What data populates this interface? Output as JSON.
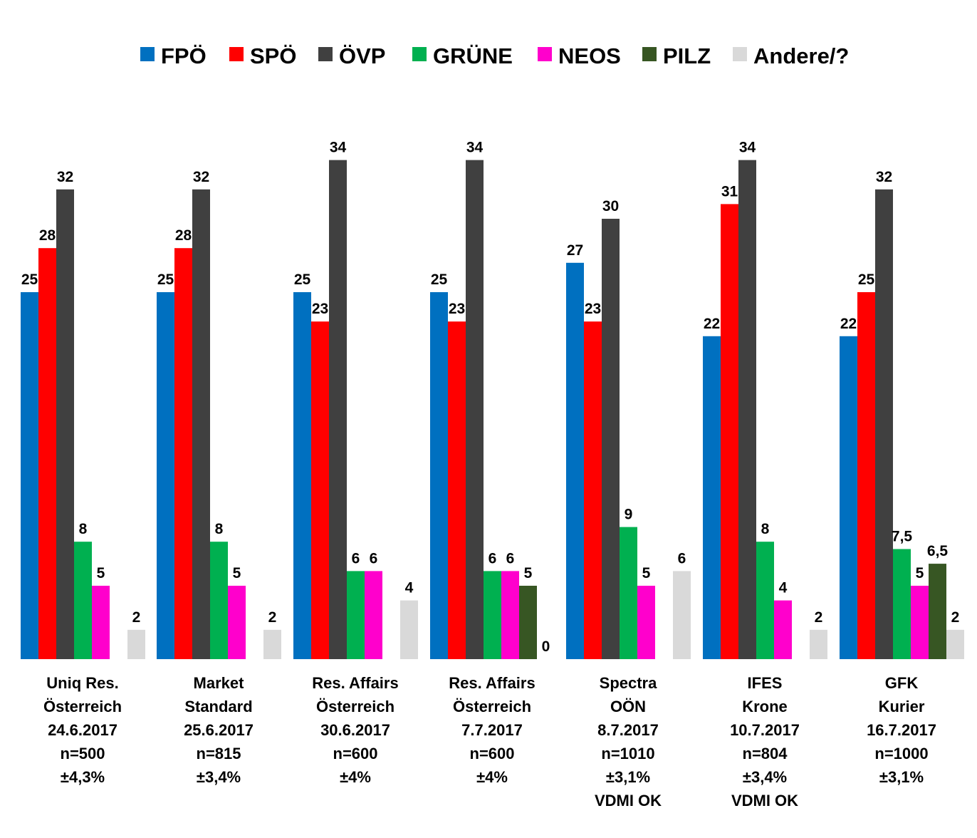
{
  "chart_data": {
    "type": "bar",
    "title": "",
    "xlabel": "",
    "ylabel": "",
    "ylim": [
      0,
      34
    ],
    "grid": false,
    "legend_position": "top",
    "categories": [
      [
        "Uniq Res.",
        "Österreich",
        "24.6.2017",
        "n=500",
        "±4,3%"
      ],
      [
        "Market",
        "Standard",
        "25.6.2017",
        "n=815",
        "±3,4%"
      ],
      [
        "Res. Affairs",
        "Österreich",
        "30.6.2017",
        "n=600",
        "±4%"
      ],
      [
        "Res. Affairs",
        "Österreich",
        "7.7.2017",
        "n=600",
        "±4%"
      ],
      [
        "Spectra",
        "OÖN",
        "8.7.2017",
        "n=1010",
        "±3,1%",
        "VDMI OK"
      ],
      [
        "IFES",
        "Krone",
        "10.7.2017",
        "n=804",
        "±3,4%",
        "VDMI OK"
      ],
      [
        "GFK",
        "Kurier",
        "16.7.2017",
        "n=1000",
        "±3,1%"
      ]
    ],
    "series": [
      {
        "name": "FPÖ",
        "color": "#0070C0",
        "values": [
          25,
          25,
          25,
          25,
          27,
          22,
          22
        ],
        "labels": [
          "25",
          "25",
          "25",
          "25",
          "27",
          "22",
          "22"
        ]
      },
      {
        "name": "SPÖ",
        "color": "#FF0000",
        "values": [
          28,
          28,
          23,
          23,
          23,
          31,
          25
        ],
        "labels": [
          "28",
          "28",
          "23",
          "23",
          "23",
          "31",
          "25"
        ]
      },
      {
        "name": "ÖVP",
        "color": "#404040",
        "values": [
          32,
          32,
          34,
          34,
          30,
          34,
          32
        ],
        "labels": [
          "32",
          "32",
          "34",
          "34",
          "30",
          "34",
          "32"
        ]
      },
      {
        "name": "GRÜNE",
        "color": "#00B050",
        "values": [
          8,
          8,
          6,
          6,
          9,
          8,
          7.5
        ],
        "labels": [
          "8",
          "8",
          "6",
          "6",
          "9",
          "8",
          "7,5"
        ]
      },
      {
        "name": "NEOS",
        "color": "#FF00CC",
        "values": [
          5,
          5,
          6,
          6,
          5,
          4,
          5
        ],
        "labels": [
          "5",
          "5",
          "6",
          "6",
          "5",
          "4",
          "5"
        ]
      },
      {
        "name": "PILZ",
        "color": "#375623",
        "values": [
          null,
          null,
          null,
          5,
          null,
          null,
          6.5
        ],
        "labels": [
          null,
          null,
          null,
          "5",
          null,
          null,
          "6,5"
        ]
      },
      {
        "name": "Andere/?",
        "color": "#D9D9D9",
        "values": [
          2,
          2,
          4,
          0,
          6,
          2,
          2
        ],
        "labels": [
          "2",
          "2",
          "4",
          "0",
          "6",
          "2",
          "2"
        ]
      }
    ]
  }
}
